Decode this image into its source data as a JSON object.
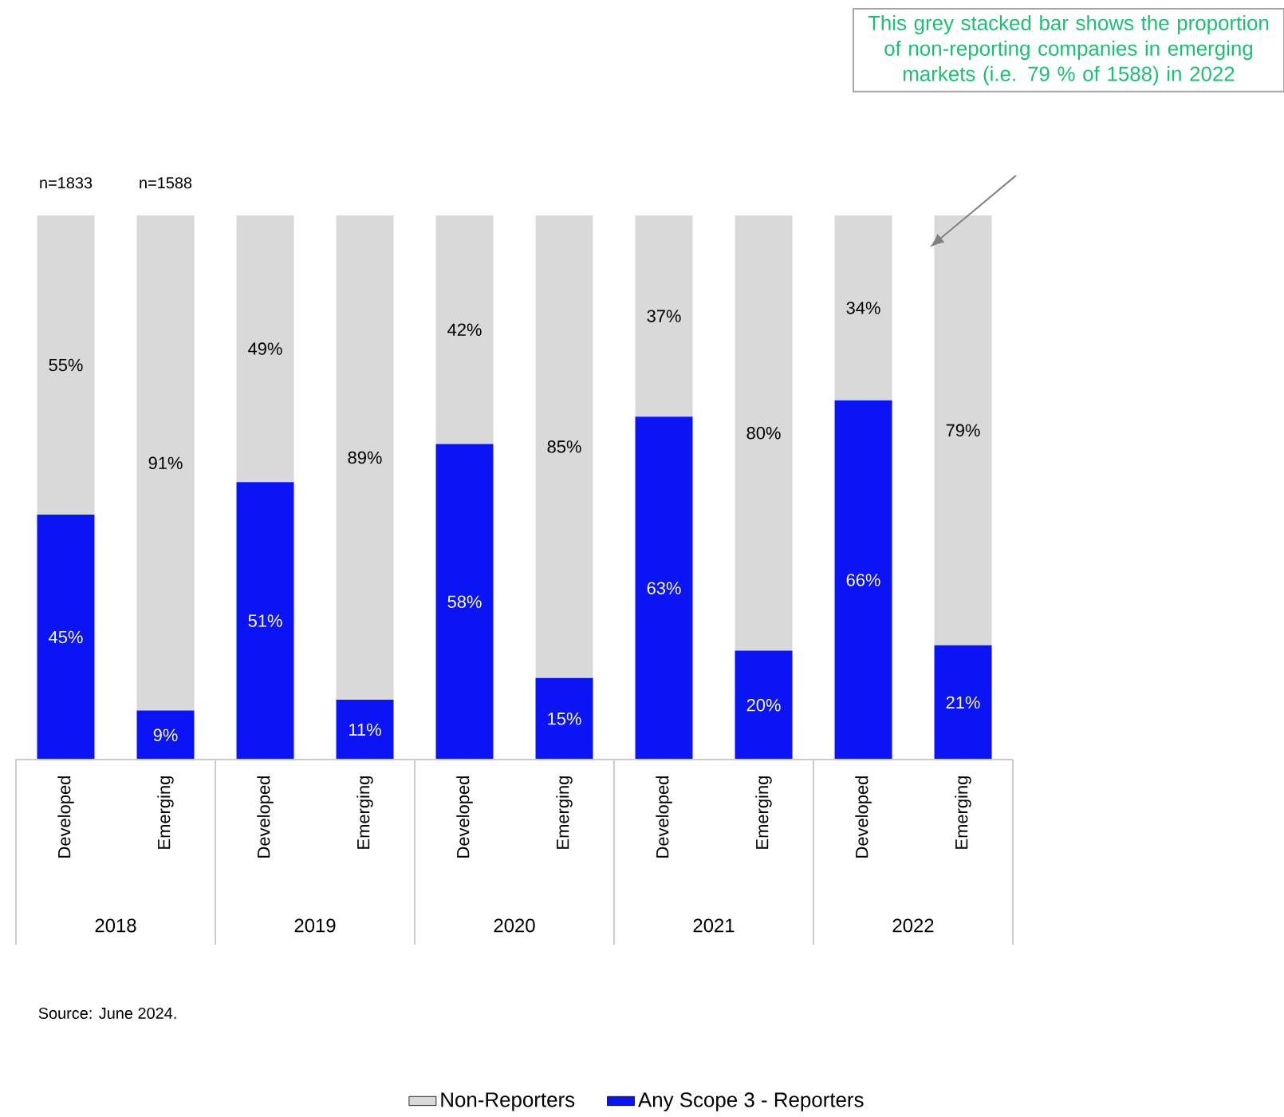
{
  "chart_data": {
    "type": "bar",
    "stacked": true,
    "legend": "bottom",
    "categories": [
      "Developed",
      "Emerging",
      "Developed",
      "Emerging",
      "Developed",
      "Emerging",
      "Developed",
      "Emerging",
      "Developed",
      "Emerging"
    ],
    "series": [
      {
        "name": "Any Scope 3 - Reporters",
        "color": "#0a14f5",
        "values": [
          45,
          9,
          51,
          11,
          58,
          15,
          63,
          20,
          66,
          21
        ],
        "value_labels": [
          "45%",
          "9%",
          "51%",
          "11%",
          "58%",
          "15%",
          "63%",
          "20%",
          "66%",
          "21%"
        ]
      },
      {
        "name": "Non-Reporters",
        "color": "#d9d9d9",
        "values": [
          55,
          91,
          49,
          89,
          42,
          85,
          37,
          80,
          34,
          79
        ],
        "value_labels": [
          "55%",
          "91%",
          "49%",
          "89%",
          "42%",
          "85%",
          "37%",
          "80%",
          "34%",
          "79%"
        ]
      }
    ],
    "annotations": [
      "n=1833",
      "n=1588",
      "2018",
      "2019",
      "2020",
      "2021",
      "2022",
      "This grey stacked bar shows the proportion of non-reporting companies in emerging markets (i.e. 79 % of 1588) in 2022",
      "Source: June 2024."
    ]
  }
}
